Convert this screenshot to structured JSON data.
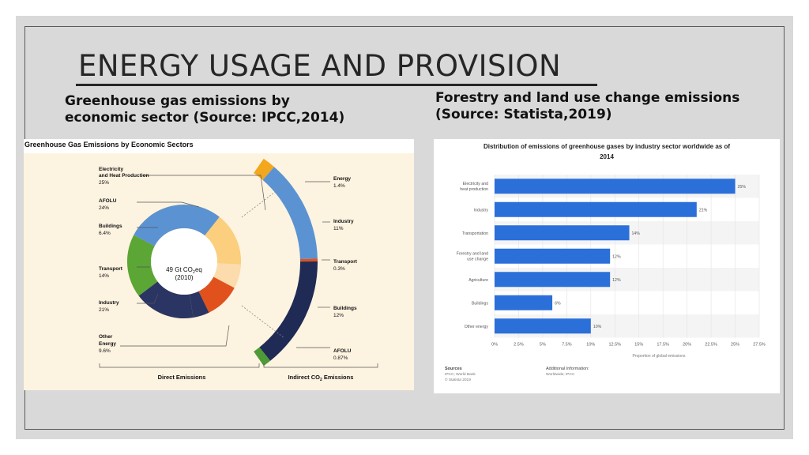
{
  "slide": {
    "title": "ENERGY USAGE AND PROVISION",
    "left_heading_line1": "Greenhouse gas emissions by",
    "left_heading_line2": "economic sector (Source: IPCC,2014)",
    "right_heading_line1": "Forestry and land use change emissions",
    "right_heading_line2": "(Source: Statista,2019)"
  },
  "colors": {
    "cream": "#fdf3e1",
    "bar": "#2b6fd9",
    "electricity": "#5ba635",
    "afolu": "#2a3564",
    "buildings": "#2a3564",
    "transport": "#e0511e",
    "industry": "#5b93d2",
    "other": "#fcdcad",
    "indirect_base": "#fbcf7e",
    "energy_indirect": "#f3a71d",
    "industry_indirect": "#5b93d2",
    "transport_indirect": "#e0511e",
    "buildings_indirect": "#1f2a55",
    "afolu_indirect": "#4d9a36"
  },
  "chart_data": [
    {
      "type": "pie",
      "title": "Greenhouse Gas Emissions by Economic Sectors",
      "center_label_line1": "49 Gt CO",
      "center_label_sub": "2",
      "center_label_suffix": "eq",
      "center_label_line2": "(2010)",
      "direct_label": "Direct Emissions",
      "indirect_label_prefix": "Indirect CO",
      "indirect_label_sub": "2",
      "indirect_label_suffix": " Emissions",
      "direct_emissions": [
        {
          "name": "Electricity and Heat Production",
          "line1": "Electricity",
          "line2": "and Heat Production",
          "value": 25,
          "label": "25%"
        },
        {
          "name": "Industry",
          "line1": "Industry",
          "line2": "",
          "value": 21,
          "label": "21%"
        },
        {
          "name": "Transport",
          "line1": "Transport",
          "line2": "",
          "value": 14,
          "label": "14%"
        },
        {
          "name": "Buildings",
          "line1": "Buildings",
          "line2": "",
          "value": 6.4,
          "label": "6.4%"
        },
        {
          "name": "AFOLU",
          "line1": "AFOLU",
          "line2": "",
          "value": 24,
          "label": "24%"
        },
        {
          "name": "Other Energy",
          "line1": "Other",
          "line2": "Energy",
          "value": 9.6,
          "label": "9.6%"
        }
      ],
      "indirect_emissions": [
        {
          "name": "Energy",
          "value": 1.4,
          "label": "1.4%"
        },
        {
          "name": "Industry",
          "value": 11,
          "label": "11%"
        },
        {
          "name": "Transport",
          "value": 0.3,
          "label": "0.3%"
        },
        {
          "name": "Buildings",
          "value": 12,
          "label": "12%"
        },
        {
          "name": "AFOLU",
          "value": 0.87,
          "label": "0.87%"
        }
      ]
    },
    {
      "type": "bar",
      "orientation": "horizontal",
      "title_line1": "Distribution of emissions of greenhouse gases by industry sector worldwide as of",
      "title_line2": "2014",
      "categories": [
        {
          "line1": "Electricity and",
          "line2": "heat production"
        },
        {
          "line1": "Industry",
          "line2": ""
        },
        {
          "line1": "Transportation",
          "line2": ""
        },
        {
          "line1": "Forestry and land",
          "line2": "use change"
        },
        {
          "line1": "Agriculture",
          "line2": ""
        },
        {
          "line1": "Buildings",
          "line2": ""
        },
        {
          "line1": "Other energy",
          "line2": ""
        }
      ],
      "values": [
        25,
        21,
        14,
        12,
        12,
        6,
        10
      ],
      "value_labels": [
        "25%",
        "21%",
        "14%",
        "12%",
        "12%",
        "6%",
        "10%"
      ],
      "xticks": [
        0,
        2.5,
        5,
        7.5,
        10,
        12.5,
        15,
        17.5,
        20,
        22.5,
        25,
        27.5
      ],
      "xtick_labels": [
        "0%",
        "2.5%",
        "5%",
        "7.5%",
        "10%",
        "12.5%",
        "15%",
        "17.5%",
        "20%",
        "22.5%",
        "25%",
        "27.5%"
      ],
      "xlim": [
        0,
        27.5
      ],
      "xlabel": "Proportion of global emissions",
      "sources_heading": "Sources",
      "sources_line1": "IPCC; World Bank",
      "sources_line2": "© Statista 2019",
      "additional_heading": "Additional Information:",
      "additional_line1": "Worldwide; IPCC"
    }
  ]
}
